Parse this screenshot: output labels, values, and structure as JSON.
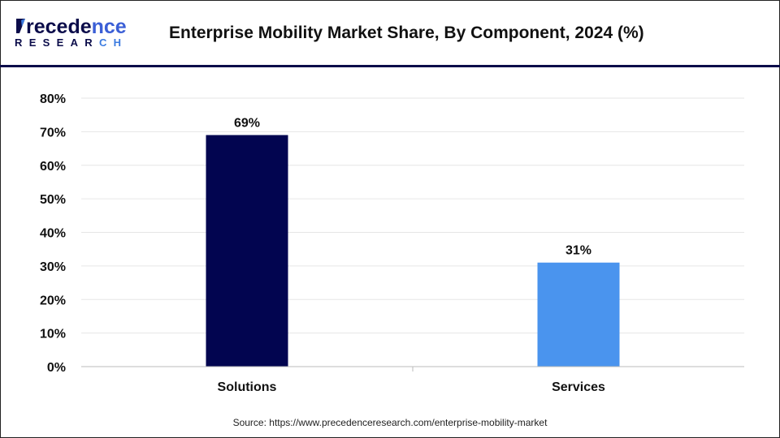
{
  "header": {
    "logo_text": "Precedence",
    "logo_subtext": "RESEARCH",
    "title": "Enterprise Mobility Market Share, By Component, 2024 (%)"
  },
  "chart_data": {
    "type": "bar",
    "title": "Enterprise Mobility Market Share, By Component, 2024 (%)",
    "categories": [
      "Solutions",
      "Services"
    ],
    "values": [
      69,
      31
    ],
    "data_labels": [
      "69%",
      "31%"
    ],
    "colors": [
      "#020550",
      "#4a94ee"
    ],
    "xlabel": "",
    "ylabel": "",
    "ylim": [
      0,
      80
    ],
    "yticks": [
      0,
      10,
      20,
      30,
      40,
      50,
      60,
      70,
      80
    ],
    "ytick_labels": [
      "0%",
      "10%",
      "20%",
      "30%",
      "40%",
      "50%",
      "60%",
      "70%",
      "80%"
    ],
    "grid": true,
    "legend": "none"
  },
  "footer": {
    "source": "Source: https://www.precedenceresearch.com/enterprise-mobility-market"
  }
}
